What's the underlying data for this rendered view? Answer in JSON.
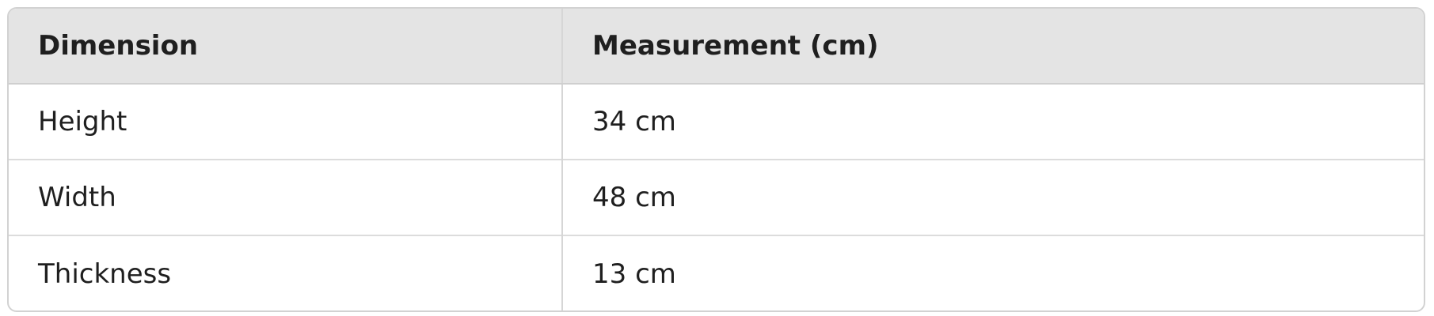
{
  "table": {
    "headers": [
      "Dimension",
      "Measurement (cm)"
    ],
    "rows": [
      [
        "Height",
        "34 cm"
      ],
      [
        "Width",
        "48 cm"
      ],
      [
        "Thickness",
        "13 cm"
      ]
    ]
  }
}
